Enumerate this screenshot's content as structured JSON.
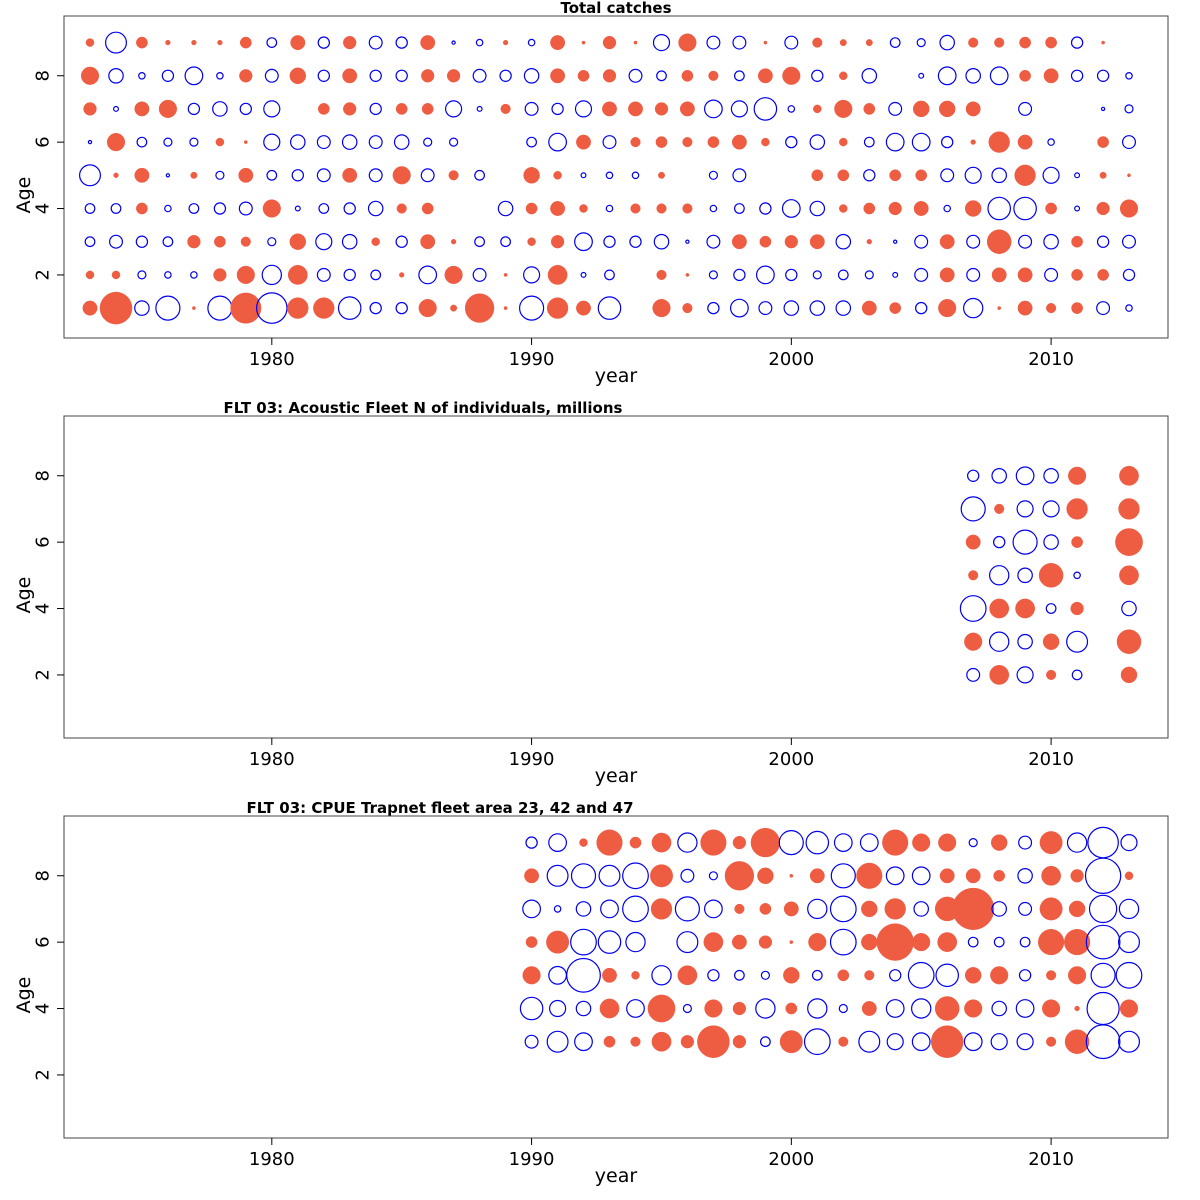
{
  "colors": {
    "positive": "#ee5c42",
    "negative": "#0000ee",
    "frame": "#444444"
  },
  "chart_data": [
    {
      "type": "scatter",
      "subtype": "bubble",
      "title": "Total catches",
      "xlabel": "year",
      "ylabel": "Age",
      "xlim": [
        1972,
        2014.5
      ],
      "ylim": [
        0.1,
        9.8
      ],
      "xticks": [
        1980,
        1990,
        2000,
        2010
      ],
      "yticks": [
        2,
        4,
        6,
        8
      ],
      "x": [
        1973,
        1974,
        1975,
        1976,
        1977,
        1978,
        1979,
        1980,
        1981,
        1982,
        1983,
        1984,
        1985,
        1986,
        1987,
        1988,
        1989,
        1990,
        1991,
        1992,
        1993,
        1994,
        1995,
        1996,
        1997,
        1998,
        1999,
        2000,
        2001,
        2002,
        2003,
        2004,
        2005,
        2006,
        2007,
        2008,
        2009,
        2010,
        2011,
        2012,
        2013
      ],
      "ages": [
        1,
        2,
        3,
        4,
        5,
        6,
        7,
        8,
        9
      ],
      "residuals": [
        [
          0.45,
          1.0,
          -0.45,
          -0.75,
          0.1,
          -0.75,
          0.95,
          -0.95,
          0.65,
          0.65,
          -0.7,
          -0.35,
          -0.35,
          0.55,
          0.2,
          0.9,
          0.1,
          -0.75,
          0.65,
          0.45,
          -0.7,
          0.0,
          0.55,
          0.3,
          -0.35,
          -0.55,
          -0.4,
          -0.45,
          -0.45,
          -0.45,
          0.45,
          0.35,
          -0.35,
          0.55,
          -0.6,
          0.1,
          0.45,
          0.3,
          0.35,
          -0.4,
          -0.2
        ],
        [
          0.25,
          0.25,
          -0.25,
          -0.2,
          -0.2,
          0.4,
          0.55,
          -0.6,
          0.6,
          -0.4,
          -0.35,
          -0.3,
          0.15,
          -0.55,
          0.55,
          -0.4,
          0.1,
          -0.5,
          0.6,
          -0.15,
          -0.3,
          0.0,
          0.3,
          0.1,
          -0.25,
          -0.35,
          -0.55,
          -0.35,
          -0.25,
          -0.3,
          -0.25,
          -0.15,
          -0.4,
          0.45,
          -0.4,
          0.45,
          0.45,
          -0.4,
          0.35,
          0.35,
          -0.35
        ],
        [
          -0.3,
          -0.4,
          -0.35,
          -0.3,
          0.4,
          0.35,
          0.3,
          -0.25,
          0.5,
          -0.5,
          -0.45,
          0.25,
          -0.35,
          0.45,
          0.15,
          -0.3,
          -0.3,
          0.25,
          0.4,
          -0.55,
          -0.35,
          -0.35,
          -0.45,
          -0.1,
          -0.4,
          0.45,
          0.35,
          0.4,
          0.45,
          -0.45,
          0.15,
          -0.1,
          -0.4,
          0.45,
          -0.4,
          0.75,
          -0.4,
          -0.45,
          0.35,
          -0.35,
          -0.4
        ],
        [
          -0.3,
          -0.3,
          0.35,
          -0.2,
          -0.3,
          -0.35,
          -0.4,
          0.55,
          -0.15,
          -0.3,
          -0.35,
          -0.45,
          0.3,
          0.35,
          0.0,
          0.0,
          -0.45,
          0.35,
          0.45,
          0.25,
          -0.2,
          0.3,
          0.3,
          0.3,
          -0.2,
          -0.3,
          -0.35,
          -0.55,
          -0.45,
          0.25,
          0.35,
          0.4,
          0.45,
          -0.2,
          0.5,
          -0.7,
          -0.7,
          0.35,
          -0.15,
          0.4,
          0.55
        ],
        [
          -0.65,
          0.15,
          0.45,
          -0.1,
          0.2,
          -0.25,
          0.45,
          -0.3,
          -0.35,
          -0.4,
          0.45,
          -0.4,
          0.55,
          -0.4,
          0.3,
          -0.3,
          0.0,
          0.5,
          0.25,
          -0.15,
          -0.2,
          -0.2,
          0.2,
          0.0,
          -0.25,
          -0.4,
          0.0,
          0.0,
          0.35,
          0.35,
          -0.35,
          0.35,
          0.35,
          -0.4,
          -0.5,
          -0.45,
          0.65,
          -0.5,
          -0.15,
          0.2,
          0.1
        ],
        [
          -0.1,
          0.55,
          -0.3,
          -0.25,
          -0.25,
          0.25,
          0.1,
          -0.5,
          -0.45,
          -0.4,
          -0.45,
          -0.4,
          -0.45,
          -0.25,
          -0.25,
          0.0,
          0.0,
          -0.3,
          -0.55,
          0.45,
          -0.4,
          0.3,
          0.35,
          0.3,
          0.35,
          0.45,
          0.25,
          -0.35,
          -0.45,
          0.25,
          -0.3,
          -0.55,
          -0.55,
          -0.35,
          0.15,
          0.65,
          0.45,
          -0.2,
          0.0,
          0.35,
          -0.4
        ],
        [
          0.4,
          -0.15,
          0.45,
          0.55,
          -0.35,
          -0.45,
          -0.35,
          -0.5,
          0.0,
          0.35,
          0.4,
          -0.35,
          0.35,
          0.35,
          -0.5,
          -0.15,
          0.3,
          -0.4,
          -0.35,
          -0.5,
          0.45,
          0.45,
          0.4,
          0.45,
          -0.55,
          -0.5,
          -0.7,
          -0.2,
          0.25,
          0.55,
          0.35,
          -0.4,
          0.5,
          0.5,
          0.45,
          0.0,
          -0.4,
          0.0,
          0.0,
          -0.1,
          -0.25
        ],
        [
          0.55,
          -0.45,
          -0.2,
          -0.35,
          -0.55,
          -0.2,
          0.4,
          -0.4,
          0.5,
          -0.35,
          0.45,
          -0.35,
          -0.35,
          0.4,
          0.4,
          -0.4,
          -0.35,
          -0.45,
          0.45,
          0.35,
          0.4,
          -0.4,
          -0.3,
          0.35,
          0.3,
          -0.3,
          0.45,
          0.55,
          -0.35,
          0.25,
          -0.45,
          0.0,
          -0.15,
          -0.55,
          -0.45,
          -0.55,
          0.35,
          0.45,
          -0.35,
          -0.35,
          -0.2
        ],
        [
          0.25,
          -0.65,
          0.35,
          0.15,
          0.15,
          0.15,
          0.35,
          -0.3,
          0.45,
          -0.35,
          0.4,
          -0.4,
          -0.35,
          0.45,
          -0.1,
          -0.2,
          0.15,
          -0.2,
          0.45,
          0.1,
          0.4,
          0.1,
          -0.5,
          0.55,
          -0.4,
          -0.4,
          0.1,
          -0.4,
          0.3,
          0.2,
          0.2,
          -0.3,
          -0.25,
          -0.45,
          0.3,
          0.3,
          0.35,
          0.35,
          -0.35,
          0.1,
          0.0
        ]
      ]
    },
    {
      "type": "scatter",
      "subtype": "bubble",
      "title": "FLT 03: Acoustic Fleet   N of individuals, millions",
      "xlabel": "year",
      "ylabel": "Age",
      "xlim": [
        1972,
        2014.5
      ],
      "ylim": [
        0.1,
        9.8
      ],
      "xticks": [
        1980,
        1990,
        2000,
        2010
      ],
      "yticks": [
        2,
        4,
        6,
        8
      ],
      "x": [
        2007,
        2008,
        2009,
        2010,
        2011,
        2013
      ],
      "ages": [
        2,
        3,
        4,
        5,
        6,
        7,
        8
      ],
      "residuals": [
        [
          -0.4,
          0.6,
          -0.5,
          0.3,
          -0.3,
          0.5
        ],
        [
          0.55,
          -0.6,
          -0.45,
          0.5,
          -0.65,
          0.75
        ],
        [
          -0.8,
          0.6,
          0.6,
          -0.3,
          0.4,
          -0.45
        ],
        [
          0.3,
          -0.6,
          -0.45,
          0.75,
          -0.2,
          0.6
        ],
        [
          0.45,
          -0.35,
          -0.75,
          -0.45,
          0.35,
          0.85
        ],
        [
          -0.75,
          0.3,
          -0.5,
          -0.5,
          0.65,
          0.65
        ],
        [
          -0.35,
          -0.45,
          -0.55,
          -0.45,
          0.55,
          0.6
        ]
      ]
    },
    {
      "type": "scatter",
      "subtype": "bubble",
      "title": "FLT 03: CPUE Trapnet fleet area 23, 42 and 47",
      "xlabel": "year",
      "ylabel": "Age",
      "xlim": [
        1972,
        2014.5
      ],
      "ylim": [
        0.1,
        9.8
      ],
      "xticks": [
        1980,
        1990,
        2000,
        2010
      ],
      "yticks": [
        2,
        4,
        6,
        8
      ],
      "x": [
        1990,
        1991,
        1992,
        1993,
        1994,
        1995,
        1996,
        1997,
        1998,
        1999,
        2000,
        2001,
        2002,
        2003,
        2004,
        2005,
        2006,
        2007,
        2008,
        2009,
        2010,
        2011,
        2012,
        2013
      ],
      "ages": [
        3,
        4,
        5,
        6,
        7,
        8,
        9
      ],
      "residuals": [
        [
          -0.4,
          -0.65,
          -0.55,
          0.35,
          0.3,
          0.6,
          0.4,
          1.0,
          0.4,
          -0.3,
          0.7,
          -0.8,
          0.3,
          -0.65,
          -0.5,
          -0.55,
          1.0,
          -0.55,
          -0.5,
          -0.5,
          0.3,
          0.75,
          -1.05,
          -0.65
        ],
        [
          -0.7,
          -0.5,
          -0.45,
          0.6,
          -0.55,
          0.85,
          -0.25,
          0.55,
          0.4,
          -0.6,
          0.35,
          -0.6,
          -0.25,
          0.45,
          -0.55,
          -0.6,
          0.75,
          0.55,
          -0.45,
          -0.55,
          0.55,
          0.15,
          -1.0,
          0.55
        ],
        [
          0.55,
          -0.55,
          -1.05,
          0.45,
          0.25,
          -0.6,
          0.6,
          -0.35,
          -0.3,
          -0.25,
          0.5,
          -0.3,
          0.35,
          0.3,
          -0.35,
          -0.8,
          -0.7,
          0.5,
          0.55,
          -0.35,
          0.3,
          0.55,
          -0.75,
          -0.8
        ],
        [
          0.35,
          0.7,
          -0.8,
          -0.7,
          -0.6,
          0.0,
          -0.65,
          0.6,
          0.45,
          0.4,
          0.1,
          0.55,
          -0.8,
          0.5,
          1.15,
          0.55,
          0.6,
          -0.3,
          -0.3,
          -0.3,
          0.8,
          0.8,
          -1.05,
          -0.65
        ],
        [
          -0.55,
          -0.2,
          -0.45,
          -0.55,
          -0.8,
          0.65,
          -0.75,
          -0.55,
          0.3,
          0.35,
          0.45,
          -0.6,
          -0.8,
          0.5,
          0.65,
          -0.45,
          0.75,
          1.3,
          -0.45,
          -0.4,
          0.7,
          0.5,
          -0.85,
          -0.6
        ],
        [
          0.45,
          -0.65,
          -0.75,
          -0.65,
          -0.8,
          0.7,
          -0.4,
          -0.25,
          0.9,
          0.5,
          0.1,
          0.45,
          -0.75,
          0.8,
          -0.55,
          -0.55,
          0.45,
          0.45,
          0.35,
          -0.45,
          0.6,
          0.4,
          -1.1,
          0.25
        ],
        [
          -0.35,
          -0.55,
          0.25,
          0.8,
          0.35,
          0.6,
          -0.6,
          0.8,
          0.4,
          0.9,
          -0.75,
          -0.7,
          -0.55,
          -0.55,
          0.8,
          0.55,
          0.55,
          -0.25,
          0.5,
          -0.4,
          0.7,
          -0.6,
          -0.95,
          -0.5
        ]
      ]
    }
  ]
}
